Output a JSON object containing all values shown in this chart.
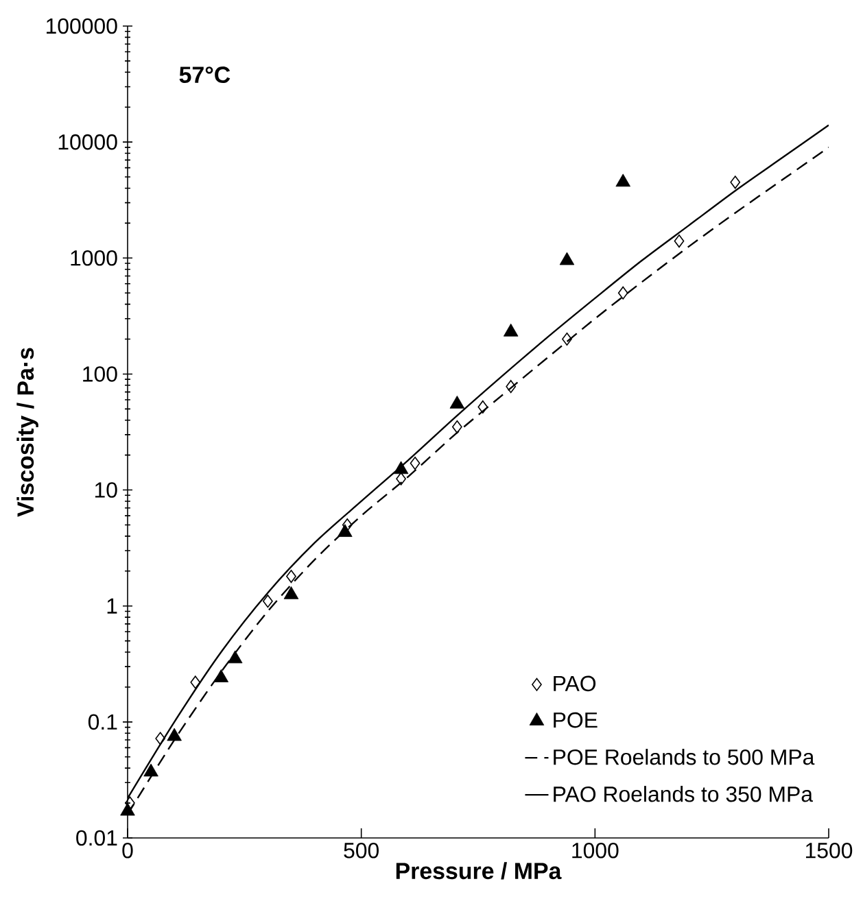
{
  "chart_data": {
    "type": "scatter",
    "xlabel": "Pressure / MPa",
    "ylabel": "Viscosity / Pa·s",
    "annotations": [
      "57°C"
    ],
    "log": "y",
    "xlim": [
      0,
      1500
    ],
    "xticks": [
      0,
      500,
      1000,
      1500
    ],
    "ylim": [
      0.01,
      100000
    ],
    "yticks": [
      0.01,
      0.1,
      1,
      10,
      100,
      1000,
      10000,
      100000
    ],
    "grid": false,
    "legend": "bottom right",
    "series": [
      {
        "name": "PAO",
        "marker": "diamond",
        "color": "#000000",
        "x": [
          5,
          70,
          145,
          300,
          350,
          470,
          585,
          615,
          705,
          760,
          820,
          940,
          1060,
          1180,
          1300
        ],
        "values": [
          0.02,
          0.072,
          0.22,
          1.1,
          1.8,
          5,
          12.5,
          17,
          35,
          52,
          78,
          200,
          500,
          1400,
          4500
        ]
      },
      {
        "name": "POE",
        "marker": "triangle",
        "color": "#000000",
        "x": [
          0,
          50,
          100,
          200,
          230,
          350,
          465,
          585,
          705,
          820,
          940,
          1060
        ],
        "values": [
          0.017,
          0.037,
          0.075,
          0.24,
          0.35,
          1.25,
          4.3,
          15,
          55,
          230,
          950,
          4500
        ]
      },
      {
        "name": "POE Roelands to 500 MPa",
        "type": "line",
        "line_style": "dashed",
        "marker": "none",
        "color": "#000000",
        "x": [
          0,
          100,
          200,
          300,
          400,
          500,
          600,
          700,
          800,
          900,
          1000,
          1100,
          1200,
          1300,
          1400,
          1500
        ],
        "values": [
          0.016,
          0.07,
          0.27,
          0.9,
          2.5,
          6,
          13,
          30,
          65,
          140,
          300,
          620,
          1250,
          2450,
          4700,
          9000
        ]
      },
      {
        "name": "PAO Roelands to 350 MPa",
        "type": "line",
        "line_style": "solid",
        "marker": "none",
        "color": "#000000",
        "x": [
          0,
          100,
          200,
          300,
          400,
          500,
          600,
          700,
          800,
          900,
          1000,
          1100,
          1200,
          1300,
          1400,
          1500
        ],
        "values": [
          0.022,
          0.1,
          0.4,
          1.3,
          3.5,
          8,
          18,
          42,
          95,
          210,
          450,
          950,
          1900,
          3800,
          7300,
          14000
        ]
      }
    ]
  }
}
